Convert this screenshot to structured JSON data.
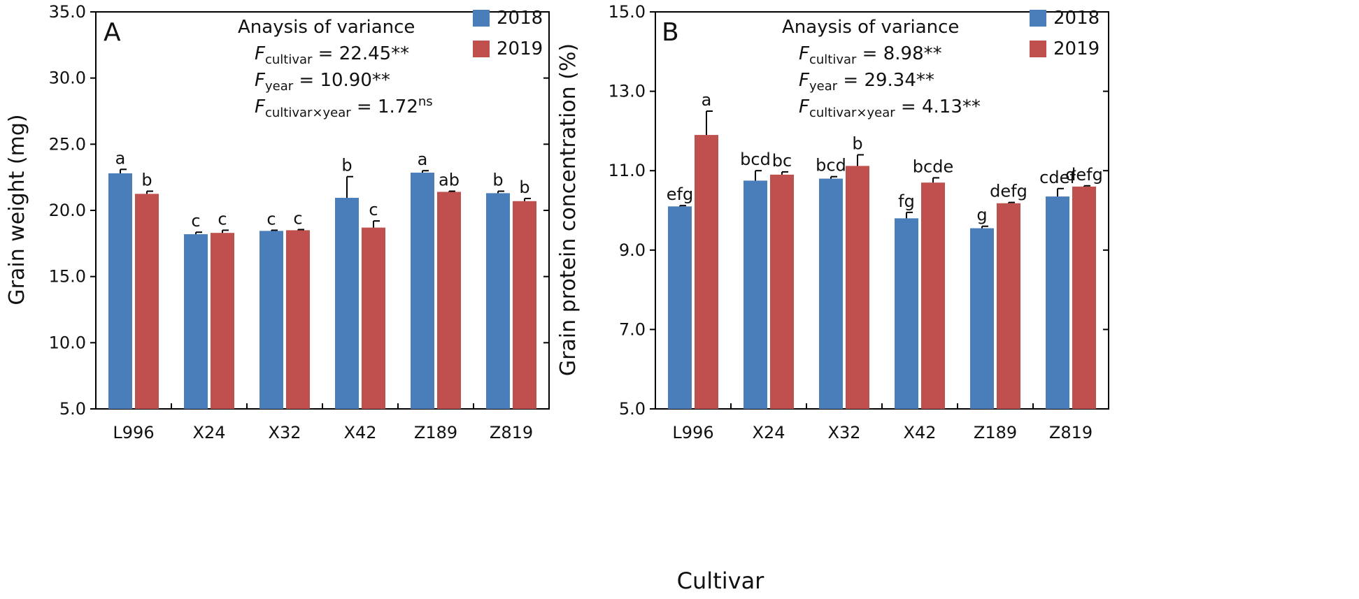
{
  "figure": {
    "common_xlabel": "Cultivar"
  },
  "chart_data": [
    {
      "type": "bar",
      "panel_label": "A",
      "title": "",
      "xlabel": "Cultivar",
      "ylabel": "Grain weight (mg)",
      "ylim": [
        5.0,
        35.0
      ],
      "yticks": [
        5.0,
        10.0,
        15.0,
        20.0,
        25.0,
        30.0,
        35.0
      ],
      "ytick_labels": [
        "5.0",
        "10.0",
        "15.0",
        "20.0",
        "25.0",
        "30.0",
        "35.0"
      ],
      "categories": [
        "L996",
        "X24",
        "X32",
        "X42",
        "Z189",
        "Z819"
      ],
      "series": [
        {
          "name": "2018",
          "color": "#4a7ebb",
          "values": [
            22.8,
            18.2,
            18.45,
            20.95,
            22.85,
            21.3
          ],
          "errors": [
            0.3,
            0.15,
            0.05,
            1.6,
            0.15,
            0.15
          ],
          "letters": [
            "a",
            "c",
            "c",
            "b",
            "a",
            "b"
          ]
        },
        {
          "name": "2019",
          "color": "#c0504d",
          "values": [
            21.25,
            18.3,
            18.5,
            18.7,
            21.4,
            20.7
          ],
          "errors": [
            0.2,
            0.2,
            0.05,
            0.5,
            0.05,
            0.2
          ],
          "letters": [
            "b",
            "c",
            "c",
            "c",
            "ab",
            "b"
          ]
        }
      ],
      "anova": {
        "title": "Anaysis of variance",
        "rows": [
          {
            "f": "F",
            "sub": "cultivar",
            "value": " = 22.45",
            "sup": "**"
          },
          {
            "f": "F",
            "sub": "year",
            "value": " = 10.90",
            "sup": "**"
          },
          {
            "f": "F",
            "sub": "cultivar×year",
            "value": " =  1.72",
            "sup": "ns"
          }
        ]
      },
      "legend": {
        "position": "top-right",
        "entries": [
          "2018",
          "2019"
        ]
      }
    },
    {
      "type": "bar",
      "panel_label": "B",
      "title": "",
      "xlabel": "Cultivar",
      "ylabel": "Grain protein concentration (%)",
      "ylim": [
        5.0,
        15.0
      ],
      "yticks": [
        5.0,
        7.0,
        9.0,
        11.0,
        13.0,
        15.0
      ],
      "ytick_labels": [
        "5.0",
        "7.0",
        "9.0",
        "11.0",
        "13.0",
        "15.0"
      ],
      "categories": [
        "L996",
        "X24",
        "X32",
        "X42",
        "Z189",
        "Z819"
      ],
      "series": [
        {
          "name": "2018",
          "color": "#4a7ebb",
          "values": [
            10.1,
            10.75,
            10.8,
            9.8,
            9.55,
            10.35
          ],
          "errors": [
            0.02,
            0.25,
            0.05,
            0.15,
            0.05,
            0.2
          ],
          "letters": [
            "efg",
            "bcd",
            "bcd",
            "fg",
            "g",
            "cdef"
          ]
        },
        {
          "name": "2019",
          "color": "#c0504d",
          "values": [
            11.9,
            10.9,
            11.12,
            10.7,
            10.18,
            10.6
          ],
          "errors": [
            0.6,
            0.07,
            0.28,
            0.12,
            0.02,
            0.02
          ],
          "letters": [
            "a",
            "bc",
            "b",
            "bcde",
            "defg",
            "defg"
          ]
        }
      ],
      "anova": {
        "title": "Anaysis of variance",
        "rows": [
          {
            "f": "F",
            "sub": "cultivar",
            "value": " = 8.98",
            "sup": "**"
          },
          {
            "f": "F",
            "sub": "year",
            "value": " = 29.34",
            "sup": "**"
          },
          {
            "f": "F",
            "sub": "cultivar×year",
            "value": " = 4.13",
            "sup": "**"
          }
        ]
      },
      "legend": {
        "position": "top-right",
        "entries": [
          "2018",
          "2019"
        ]
      }
    }
  ]
}
